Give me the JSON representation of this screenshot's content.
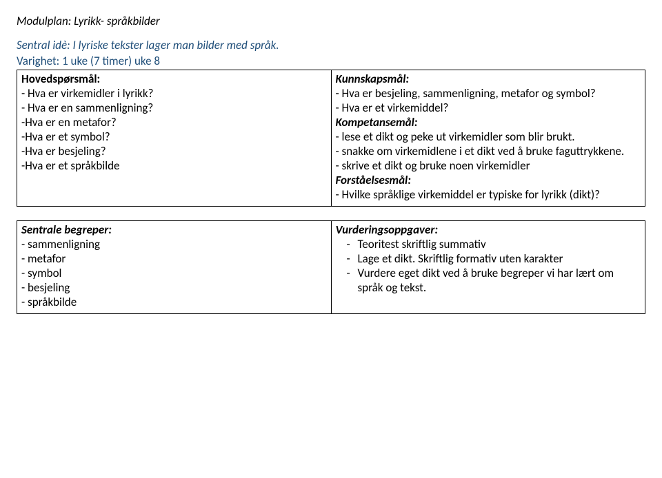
{
  "title_label": "Modulplan",
  "title_text": "Lyrikk- språkbilder",
  "central_idea_label": "Sentral idè:",
  "central_idea_text": "I lyriske tekster lager man bilder med språk.",
  "duration_label": "Varighet:",
  "duration_text": "1 uke (7 timer) uke 8",
  "row1": {
    "left": {
      "heading": "Hovedspørsmål:",
      "items": [
        "- Hva er virkemidler i lyrikk?",
        "- Hva er en sammenligning?",
        "-Hva er en metafor?",
        "-Hva er et symbol?",
        "-Hva er besjeling?",
        "-Hva er et språkbilde"
      ]
    },
    "right": {
      "sections": [
        {
          "heading": "Kunnskapsmål:",
          "items": [
            "- Hva er besjeling, sammenligning, metafor og symbol?",
            "- Hva er et virkemiddel?"
          ]
        },
        {
          "heading": "Kompetansemål:",
          "items": [
            "- lese et dikt og peke ut virkemidler som blir brukt.",
            "- snakke om virkemidlene i et dikt ved å bruke faguttrykkene.",
            "- skrive et dikt og bruke noen virkemidler"
          ]
        },
        {
          "heading": "Forståelsesmål:",
          "items": [
            "- Hvilke språklige virkemiddel er typiske for lyrikk (dikt)?"
          ]
        }
      ]
    }
  },
  "row2": {
    "left": {
      "heading": "Sentrale begreper:",
      "items": [
        "- sammenligning",
        "- metafor",
        "- symbol",
        "- besjeling",
        "- språkbilde"
      ]
    },
    "right": {
      "heading": "Vurderingsoppgaver:",
      "bullets": [
        "Teoritest skriftlig summativ",
        "Lage et dikt. Skriftlig formativ uten karakter",
        "Vurdere eget dikt ved å bruke begreper vi har lært om språk og tekst."
      ]
    }
  }
}
